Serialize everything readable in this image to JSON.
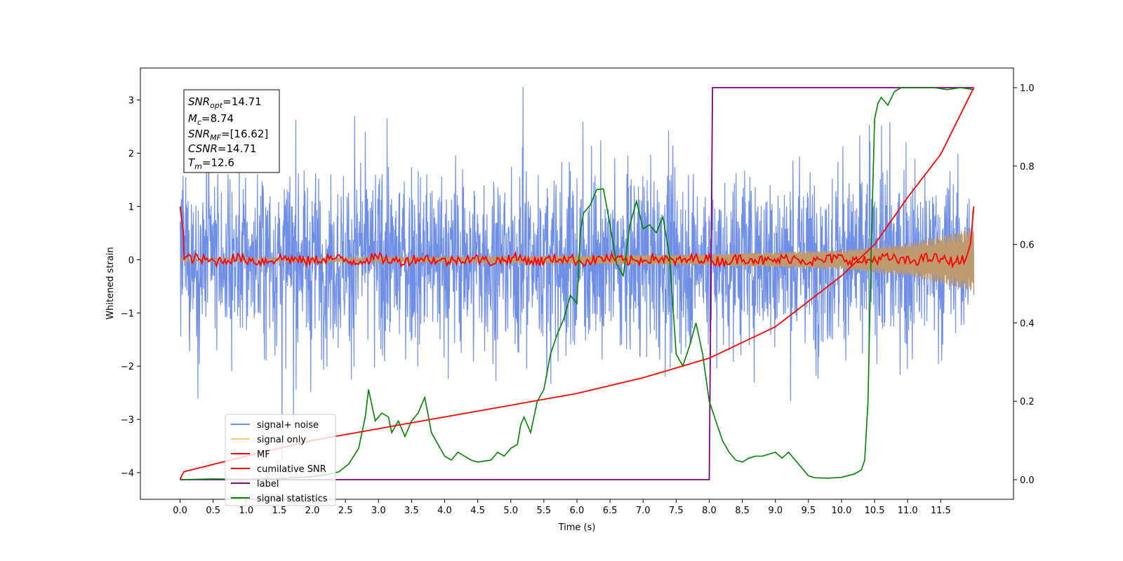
{
  "chart_data": {
    "type": "line",
    "xlabel": "Time (s)",
    "ylabel": "Whitened strain",
    "xlim": [
      -0.6,
      12.6
    ],
    "ylim": [
      -4.5,
      3.6
    ],
    "y2lim": [
      -0.05,
      1.05
    ],
    "xticks": [
      "0.0",
      "0.5",
      "1.0",
      "1.5",
      "2.0",
      "2.5",
      "3.0",
      "3.5",
      "4.0",
      "4.5",
      "5.0",
      "5.5",
      "6.0",
      "6.5",
      "7.0",
      "7.5",
      "8.0",
      "8.5",
      "9.0",
      "9.5",
      "10.0",
      "10.5",
      "11.0",
      "11.5"
    ],
    "yticks": [
      "3",
      "2",
      "1",
      "0",
      "−1",
      "−2",
      "−3",
      "−4"
    ],
    "y2ticks": [
      "1.0",
      "0.8",
      "0.6",
      "0.4",
      "0.2",
      "0.0"
    ],
    "annotation": {
      "snr_opt": "=14.71",
      "mc": "=8.74",
      "snr_mf": "=[16.62]",
      "csnr": "=14.71",
      "tm": "=12.6"
    },
    "legend": {
      "placement": "lower left",
      "entries": [
        "signal+ noise",
        "signal only",
        "MF",
        "cumilative SNR",
        "label",
        "signal statistics"
      ]
    },
    "colors": {
      "signal_noise": "#6f8fe6",
      "signal_only": "#f7c873",
      "signal_overlap": "#bf9a6e",
      "mf": "#ff0000",
      "cumulative_snr": "#ff0000",
      "label": "#800080",
      "signal_statistics": "#008000"
    },
    "series": [
      {
        "name": "signal+ noise",
        "axis": "left",
        "description_values": "whitened strain noise, approx range -4.15 to 3.25",
        "t_range": [
          0.0,
          12.0
        ]
      },
      {
        "name": "signal only",
        "axis": "left",
        "envelope": {
          "t": [
            0.0,
            4.0,
            8.0,
            10.0,
            11.0,
            12.0
          ],
          "amp": [
            0.03,
            0.05,
            0.1,
            0.18,
            0.3,
            0.6
          ]
        }
      },
      {
        "name": "MF",
        "axis": "left",
        "start_values": {
          "t": [
            0.0,
            0.05,
            0.1
          ],
          "y": [
            1.0,
            0.5,
            0.0
          ]
        },
        "end_values": {
          "t": [
            11.95,
            12.0
          ],
          "y": [
            0.3,
            1.0
          ]
        }
      },
      {
        "name": "cumilative SNR",
        "axis": "right",
        "t": [
          0.0,
          0.05,
          1.0,
          2.0,
          3.0,
          4.0,
          5.0,
          6.0,
          7.0,
          8.0,
          9.0,
          10.0,
          10.5,
          11.0,
          11.5,
          12.0
        ],
        "y": [
          0.0,
          0.02,
          0.06,
          0.1,
          0.13,
          0.16,
          0.19,
          0.22,
          0.26,
          0.31,
          0.39,
          0.52,
          0.6,
          0.72,
          0.83,
          1.0
        ]
      },
      {
        "name": "label",
        "axis": "right",
        "t": [
          0.0,
          8.0,
          8.05,
          12.0
        ],
        "y": [
          0.0,
          0.0,
          1.0,
          1.0
        ]
      },
      {
        "name": "signal statistics",
        "axis": "right",
        "t": [
          0.0,
          0.5,
          1.0,
          1.5,
          2.0,
          2.2,
          2.4,
          2.55,
          2.7,
          2.8,
          2.85,
          2.95,
          3.05,
          3.15,
          3.2,
          3.3,
          3.4,
          3.5,
          3.6,
          3.7,
          3.8,
          3.9,
          4.0,
          4.1,
          4.2,
          4.3,
          4.4,
          4.5,
          4.7,
          4.8,
          4.9,
          5.0,
          5.1,
          5.15,
          5.2,
          5.3,
          5.4,
          5.5,
          5.6,
          5.7,
          5.8,
          5.9,
          6.0,
          6.05,
          6.1,
          6.2,
          6.3,
          6.4,
          6.5,
          6.6,
          6.7,
          6.8,
          6.9,
          7.0,
          7.1,
          7.2,
          7.3,
          7.4,
          7.5,
          7.6,
          7.7,
          7.8,
          7.9,
          8.0,
          8.1,
          8.2,
          8.3,
          8.4,
          8.5,
          8.6,
          8.7,
          8.8,
          8.9,
          9.0,
          9.1,
          9.2,
          9.3,
          9.4,
          9.5,
          9.6,
          9.8,
          10.0,
          10.2,
          10.3,
          10.35,
          10.4,
          10.45,
          10.5,
          10.55,
          10.6,
          10.7,
          10.8,
          10.9,
          11.0,
          11.2,
          11.4,
          11.6,
          11.8,
          12.0
        ],
        "y": [
          0.0,
          0.002,
          0.001,
          0.003,
          0.008,
          0.012,
          0.02,
          0.04,
          0.08,
          0.16,
          0.23,
          0.15,
          0.17,
          0.16,
          0.12,
          0.15,
          0.11,
          0.15,
          0.17,
          0.21,
          0.12,
          0.09,
          0.06,
          0.05,
          0.07,
          0.06,
          0.05,
          0.045,
          0.05,
          0.07,
          0.06,
          0.08,
          0.09,
          0.14,
          0.16,
          0.12,
          0.2,
          0.23,
          0.32,
          0.37,
          0.41,
          0.47,
          0.45,
          0.63,
          0.68,
          0.7,
          0.74,
          0.742,
          0.65,
          0.55,
          0.52,
          0.65,
          0.71,
          0.64,
          0.65,
          0.63,
          0.67,
          0.57,
          0.32,
          0.29,
          0.34,
          0.4,
          0.32,
          0.2,
          0.15,
          0.1,
          0.07,
          0.05,
          0.045,
          0.055,
          0.06,
          0.06,
          0.065,
          0.07,
          0.055,
          0.07,
          0.05,
          0.03,
          0.01,
          0.005,
          0.004,
          0.006,
          0.015,
          0.025,
          0.05,
          0.2,
          0.6,
          0.92,
          0.96,
          0.975,
          0.955,
          0.99,
          1.0,
          1.0,
          1.0,
          1.0,
          0.995,
          1.0,
          0.995
        ]
      }
    ]
  }
}
